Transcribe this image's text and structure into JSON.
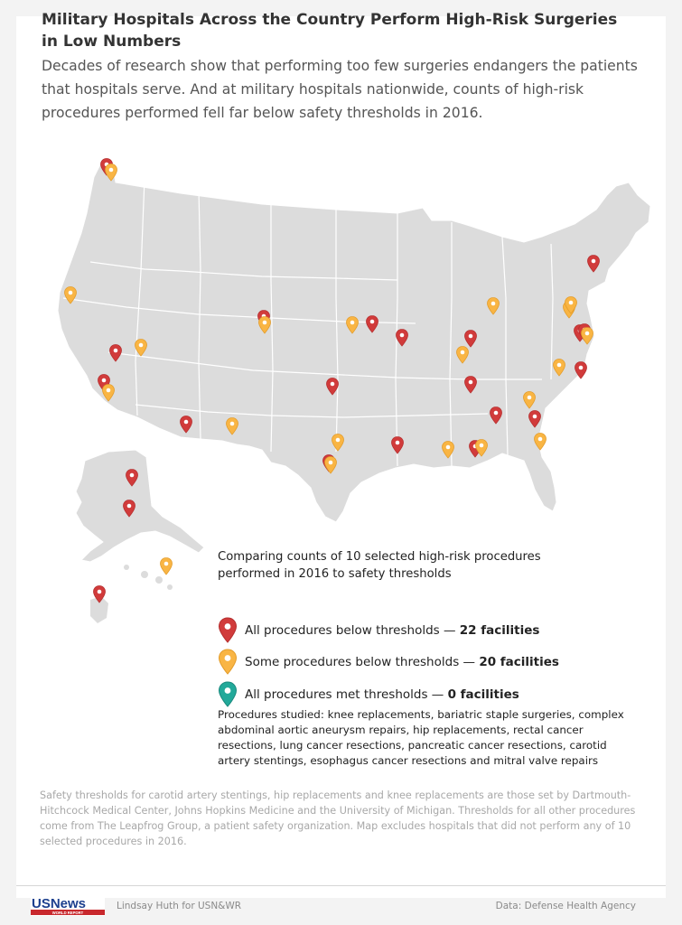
{
  "title": "Military Hospitals Across the Country Perform High-Risk Surgeries in Low Numbers",
  "subtitle": "Decades of research show that performing too few surgeries endangers the patients that hospitals serve. And at military hospitals nationwide, counts of high-risk procedures performed fell far below safety thresholds in 2016.",
  "colors": {
    "all_below": "#d13b3b",
    "some_below": "#f9b544",
    "all_met": "#22a99a",
    "land": "#dcdcdc",
    "border": "#ffffff"
  },
  "legend": {
    "title": "Comparing counts of 10 selected high-risk procedures performed in 2016 to safety thresholds",
    "items": [
      {
        "label": "All procedures below thresholds — ",
        "count": "22 facilities",
        "color": "#d13b3b"
      },
      {
        "label": "Some procedures below thresholds — ",
        "count": "20 facilities",
        "color": "#f9b544"
      },
      {
        "label": "All procedures met thresholds — ",
        "count": "0 facilities",
        "color": "#22a99a"
      }
    ]
  },
  "procedures_note": "Procedures studied: knee replacements, bariatric staple surgeries, complex abdominal aortic aneurysm repairs, hip replacements, rectal cancer resections, lung cancer resections, pancreatic cancer resections, carotid artery stentings, esophagus cancer resections and mitral valve repairs",
  "thresholds_note": "Safety thresholds for carotid artery stentings, hip replacements and knee replacements are those set by Dartmouth-Hitchcock Medical Center, Johns Hopkins Medicine and the University of Michigan. Thresholds for all other procedures come from The Leapfrog Group, a patient safety organization. Map excludes hospitals that did not perform any of 10 selected procedures in 2016.",
  "footer": {
    "logo": "USNews",
    "logo_sub": "WORLD REPORT",
    "credit": "Lindsay Huth for USN&WR",
    "source": "Data: Defense Health Agency"
  }
}
